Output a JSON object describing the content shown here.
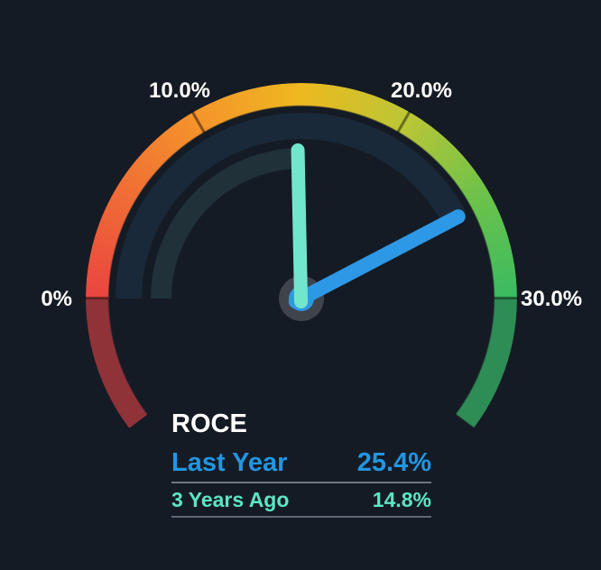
{
  "chart_data": {
    "type": "gauge",
    "title": "ROCE",
    "unit": "%",
    "axis": {
      "min": 0,
      "max": 30,
      "start_angle_deg": 180,
      "end_angle_deg": 0,
      "tick_values": [
        0,
        10,
        20,
        30
      ],
      "tick_labels": [
        "0%",
        "10.0%",
        "20.0%",
        "30.0%"
      ],
      "grid": false
    },
    "series": [
      {
        "name": "Last Year",
        "value": 25.4,
        "display": "25.4%",
        "color": "#2196e3",
        "needle": true,
        "trail_color": "#1a2939"
      },
      {
        "name": "3 Years Ago",
        "value": 14.8,
        "display": "14.8%",
        "color": "#5de5c4",
        "needle": true,
        "trail_color": "#203139"
      }
    ],
    "scale_gradient": [
      "#ea4540",
      "#f5942b",
      "#edb91f",
      "#bcc636",
      "#6dc24a",
      "#3abb61"
    ],
    "under_min_color": "#8f3338",
    "over_max_color": "#2e8c55",
    "legend_position": "bottom-left"
  },
  "colors": {
    "background": "#151b24",
    "hub": "#3e434c",
    "needle_last_year": "#2d98e5",
    "needle_3_years_ago": "#72e6cc",
    "tick_label_text": "#ffffff",
    "divider": "#6e7682"
  },
  "legend": {
    "title": "ROCE",
    "rows": [
      {
        "label": "Last Year",
        "value": "25.4%"
      },
      {
        "label": "3 Years Ago",
        "value": "14.8%"
      }
    ]
  }
}
